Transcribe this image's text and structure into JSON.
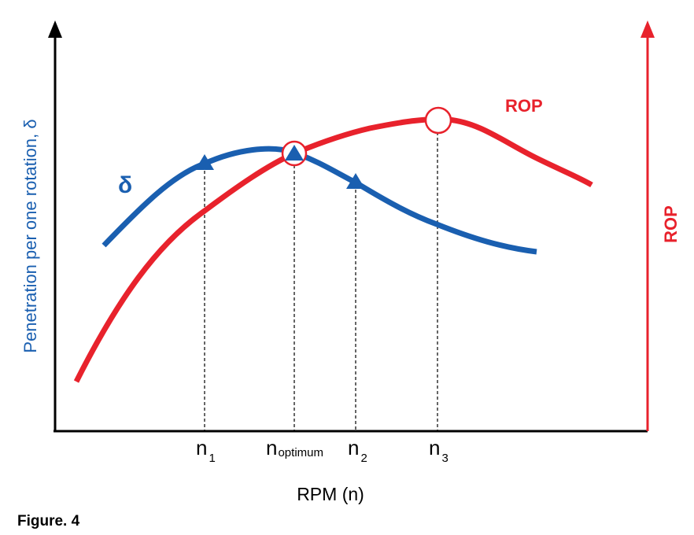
{
  "colors": {
    "delta": "#1a5fb0",
    "rop": "#e8222c",
    "axis": "#000000"
  },
  "y_label": "Penetration per one rotation,  δ",
  "right_axis_label": "ROP",
  "x_label": "RPM (n)",
  "delta_label": "δ",
  "rop_label": "ROP",
  "ticks": {
    "n1": {
      "main": "n",
      "sub": "1"
    },
    "nopt": {
      "main": "n",
      "sub": "optimum"
    },
    "n2": {
      "main": "n",
      "sub": "2"
    },
    "n3": {
      "main": "n",
      "sub": "3"
    }
  },
  "caption": "Figure. 4"
}
